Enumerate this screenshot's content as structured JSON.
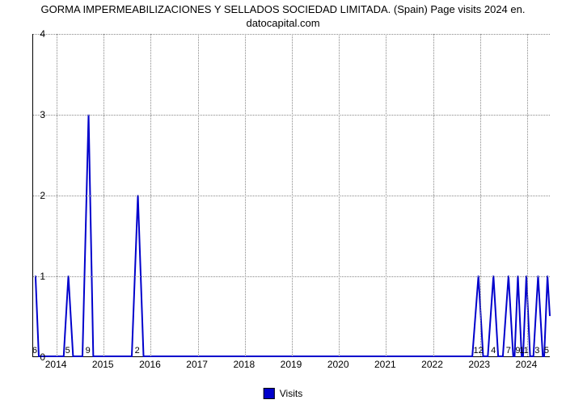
{
  "title_line1": "GORMA IMPERMEABILIZACIONES Y SELLADOS SOCIEDAD LIMITADA. (Spain) Page visits 2024 en.",
  "title_line2": "datocapital.com",
  "chart": {
    "type": "line",
    "line_color": "#0000cc",
    "line_width": 2,
    "fill_color": "none",
    "background_color": "#ffffff",
    "grid_color": "#888888",
    "grid_style": "dotted",
    "axis_color": "#000000",
    "ylim": [
      0,
      4
    ],
    "yticks": [
      0,
      1,
      2,
      3,
      4
    ],
    "x_year_start": 2013.5,
    "x_year_end": 2024.5,
    "x_tick_years": [
      2014,
      2015,
      2016,
      2017,
      2018,
      2019,
      2020,
      2021,
      2022,
      2023,
      2024
    ],
    "tick_fontsize": 12,
    "label_fontsize": 11,
    "points": [
      {
        "x": 2013.55,
        "y": 1
      },
      {
        "x": 2013.62,
        "y": 0
      },
      {
        "x": 2014.15,
        "y": 0
      },
      {
        "x": 2014.25,
        "y": 1
      },
      {
        "x": 2014.35,
        "y": 0
      },
      {
        "x": 2014.55,
        "y": 0
      },
      {
        "x": 2014.68,
        "y": 3
      },
      {
        "x": 2014.78,
        "y": 0
      },
      {
        "x": 2015.6,
        "y": 0
      },
      {
        "x": 2015.73,
        "y": 2
      },
      {
        "x": 2015.85,
        "y": 0
      },
      {
        "x": 2022.85,
        "y": 0
      },
      {
        "x": 2022.98,
        "y": 1
      },
      {
        "x": 2023.08,
        "y": 0
      },
      {
        "x": 2023.18,
        "y": 0
      },
      {
        "x": 2023.3,
        "y": 1
      },
      {
        "x": 2023.4,
        "y": 0
      },
      {
        "x": 2023.5,
        "y": 0
      },
      {
        "x": 2023.62,
        "y": 1
      },
      {
        "x": 2023.72,
        "y": 0
      },
      {
        "x": 2023.75,
        "y": 0
      },
      {
        "x": 2023.82,
        "y": 1
      },
      {
        "x": 2023.9,
        "y": 0
      },
      {
        "x": 2023.93,
        "y": 0
      },
      {
        "x": 2024.0,
        "y": 1
      },
      {
        "x": 2024.08,
        "y": 0
      },
      {
        "x": 2024.15,
        "y": 0
      },
      {
        "x": 2024.25,
        "y": 1
      },
      {
        "x": 2024.35,
        "y": 0
      },
      {
        "x": 2024.38,
        "y": 0
      },
      {
        "x": 2024.45,
        "y": 1
      },
      {
        "x": 2024.5,
        "y": 0.5
      }
    ],
    "data_labels": [
      {
        "x": 2013.55,
        "y": 0,
        "text": "6"
      },
      {
        "x": 2014.25,
        "y": 0,
        "text": "5"
      },
      {
        "x": 2014.68,
        "y": 0,
        "text": "9"
      },
      {
        "x": 2015.73,
        "y": 0,
        "text": "2"
      },
      {
        "x": 2022.98,
        "y": 0,
        "text": "12"
      },
      {
        "x": 2023.3,
        "y": 0,
        "text": "4"
      },
      {
        "x": 2023.62,
        "y": 0,
        "text": "7"
      },
      {
        "x": 2023.82,
        "y": 0,
        "text": "9"
      },
      {
        "x": 2023.95,
        "y": 0,
        "text": "11"
      },
      {
        "x": 2024.23,
        "y": 0,
        "text": "3"
      },
      {
        "x": 2024.43,
        "y": 0,
        "text": "5"
      }
    ]
  },
  "legend": {
    "label": "Visits",
    "swatch_color": "#0000cc"
  }
}
